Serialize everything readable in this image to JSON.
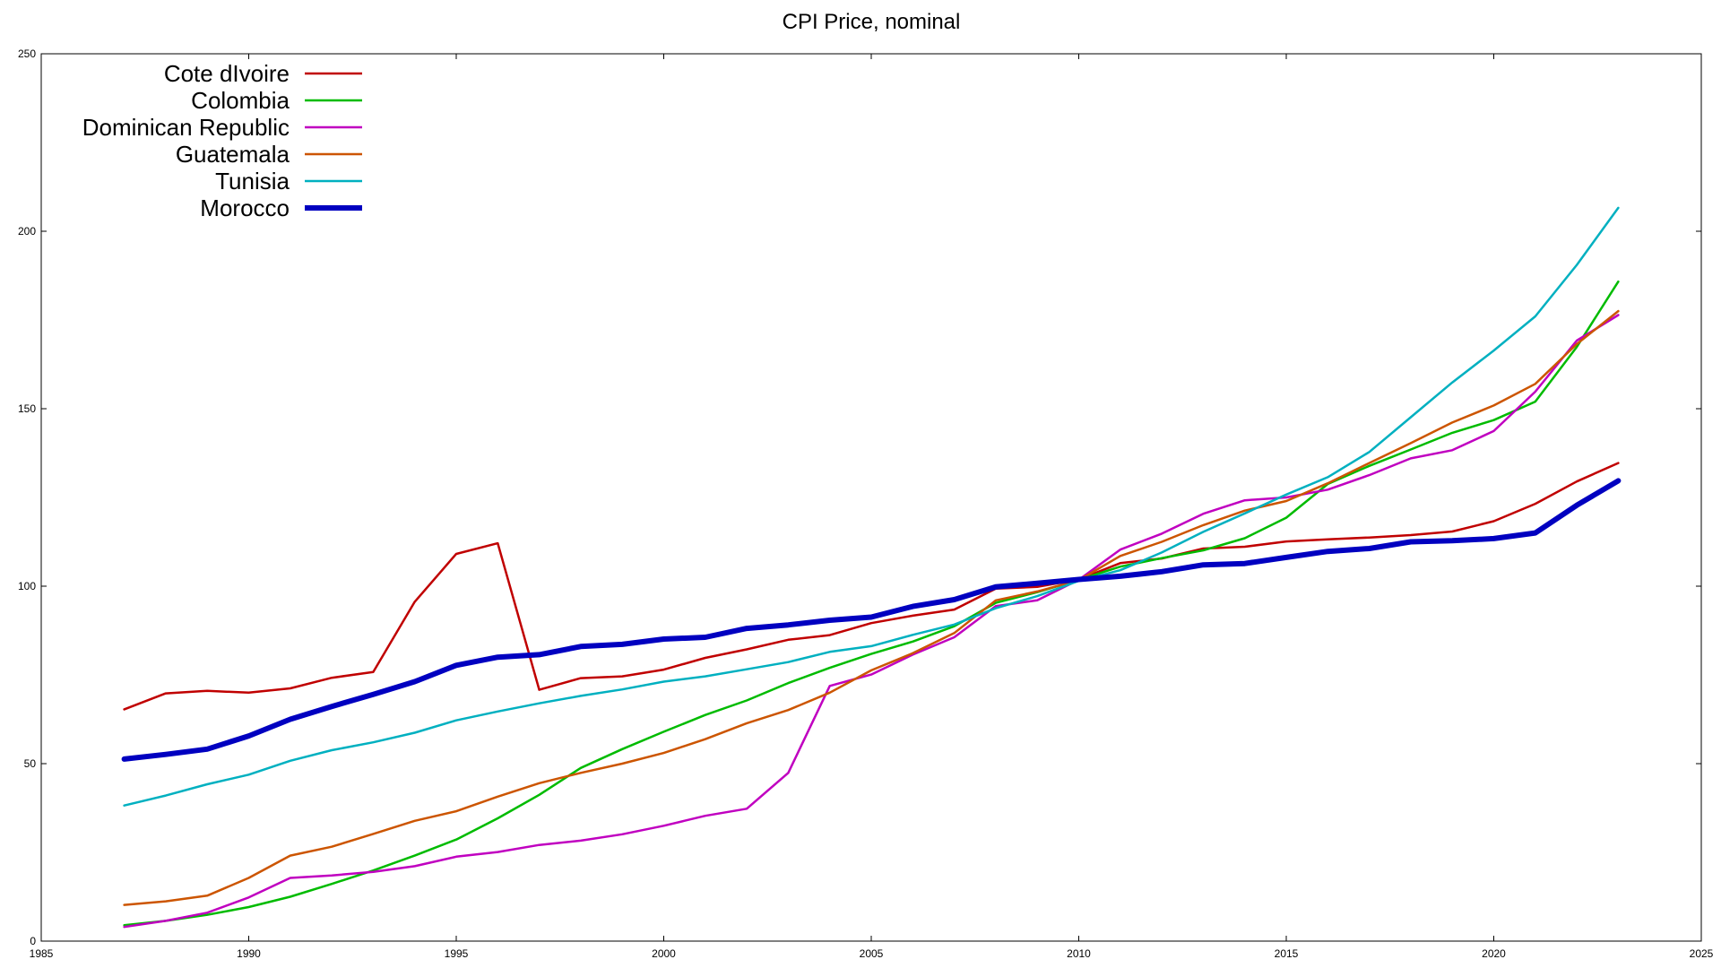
{
  "chart_data": {
    "type": "line",
    "title": "CPI Price, nominal",
    "xlabel": "",
    "ylabel": "",
    "xlim": [
      1985,
      2025
    ],
    "ylim": [
      0,
      250
    ],
    "xticks": [
      1985,
      1990,
      1995,
      2000,
      2005,
      2010,
      2015,
      2020,
      2025
    ],
    "yticks": [
      0,
      50,
      100,
      150,
      200,
      250
    ],
    "grid": false,
    "legend_position": "top-left",
    "x": [
      1987,
      1988,
      1989,
      1990,
      1991,
      1992,
      1993,
      1994,
      1995,
      1996,
      1997,
      1998,
      1999,
      2000,
      2001,
      2002,
      2003,
      2004,
      2005,
      2006,
      2007,
      2008,
      2009,
      2010,
      2011,
      2012,
      2013,
      2014,
      2015,
      2016,
      2017,
      2018,
      2019,
      2020,
      2021,
      2022,
      2023
    ],
    "series": [
      {
        "name": "Cote dIvoire",
        "color": "#c00000",
        "width": 2.5,
        "values": [
          65.3,
          69.8,
          70.5,
          70.0,
          71.2,
          74.2,
          75.8,
          95.6,
          109.1,
          112.1,
          70.8,
          74.1,
          74.6,
          76.5,
          79.8,
          82.2,
          84.9,
          86.2,
          89.6,
          91.7,
          93.4,
          99.3,
          99.8,
          101.9,
          106.5,
          107.8,
          110.6,
          111.1,
          112.6,
          113.2,
          113.7,
          114.4,
          115.4,
          118.3,
          123.2,
          129.5,
          134.7
        ]
      },
      {
        "name": "Colombia",
        "color": "#00bb00",
        "width": 2.5,
        "values": [
          4.5,
          5.7,
          7.4,
          9.6,
          12.5,
          16.1,
          19.9,
          24.1,
          28.6,
          34.6,
          41.2,
          48.8,
          54.1,
          59.0,
          63.7,
          67.8,
          72.7,
          77.0,
          80.9,
          84.4,
          88.7,
          95.3,
          98.3,
          101.8,
          105.5,
          107.9,
          110.1,
          113.5,
          119.3,
          128.8,
          133.9,
          138.5,
          143.2,
          146.8,
          152.0,
          167.4,
          185.8
        ]
      },
      {
        "name": "Dominican Republic",
        "color": "#c000c0",
        "width": 2.5,
        "values": [
          4.0,
          5.7,
          8.0,
          12.3,
          17.8,
          18.5,
          19.5,
          21.1,
          23.8,
          25.1,
          27.1,
          28.3,
          30.1,
          32.5,
          35.3,
          37.3,
          47.4,
          71.9,
          75.1,
          80.7,
          85.6,
          94.4,
          96.0,
          101.8,
          110.3,
          114.8,
          120.4,
          124.2,
          125.0,
          127.2,
          131.3,
          136.0,
          138.3,
          143.7,
          154.8,
          169.2,
          176.4
        ]
      },
      {
        "name": "Guatemala",
        "color": "#cc5500",
        "width": 2.5,
        "values": [
          10.2,
          11.2,
          12.8,
          17.8,
          24.1,
          26.6,
          30.2,
          33.9,
          36.6,
          40.7,
          44.5,
          47.4,
          50.0,
          53.0,
          56.9,
          61.4,
          65.1,
          70.0,
          76.3,
          81.1,
          86.8,
          96.0,
          98.5,
          101.7,
          108.5,
          112.5,
          117.2,
          121.3,
          124.0,
          129.0,
          134.7,
          140.3,
          146.1,
          150.9,
          157.0,
          168.2,
          177.5
        ]
      },
      {
        "name": "Tunisia",
        "color": "#00b0c0",
        "width": 2.5,
        "values": [
          38.2,
          41.0,
          44.2,
          46.9,
          50.8,
          53.8,
          56.0,
          58.7,
          62.2,
          64.7,
          67.0,
          69.1,
          70.9,
          73.1,
          74.6,
          76.6,
          78.6,
          81.5,
          83.1,
          86.3,
          89.2,
          93.8,
          97.2,
          101.5,
          104.5,
          109.5,
          115.3,
          120.5,
          125.8,
          130.7,
          137.8,
          147.6,
          157.4,
          166.4,
          176.0,
          190.5,
          206.6
        ]
      },
      {
        "name": "Morocco",
        "color": "#0000c0",
        "width": 6,
        "values": [
          51.3,
          52.6,
          54.1,
          57.8,
          62.5,
          66.1,
          69.5,
          73.1,
          77.7,
          80.0,
          80.7,
          83.0,
          83.6,
          85.1,
          85.6,
          88.1,
          89.1,
          90.4,
          91.3,
          94.3,
          96.2,
          99.8,
          100.8,
          101.9,
          102.8,
          104.1,
          106.0,
          106.4,
          108.1,
          109.8,
          110.6,
          112.5,
          112.8,
          113.4,
          115.0,
          122.8,
          129.7
        ]
      }
    ]
  }
}
